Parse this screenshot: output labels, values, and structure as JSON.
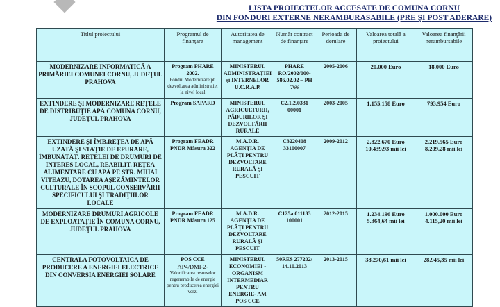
{
  "title": {
    "line1": "LISTA PROIECTELOR ACCESATE DE COMUNA CORNU",
    "line2": "DIN FONDURI EXTERNE NERAMBURASABILE (PRE ŞI POST ADERARE)"
  },
  "headers": [
    "Titlul proiectului",
    "Programul de finanţare",
    "Autoritatea de management",
    "Număr contract de finanţare",
    "Perioada de derulare",
    "Valoarea totală a proiectului",
    "Valoarea finanţării nerambursabile"
  ],
  "rows": [
    {
      "title": "MODERNIZARE INFORMATICĂ A PRIMĂRIEI COMUNEI CORNU, JUDEŢUL PRAHOVA",
      "program": "Program PHARE 2002.",
      "program_note": "Fondul Modernizare pt. dezvoltarea administratiei la nivel local",
      "authority": "MINISTERUL ADMINISTRAŢIEI şi INTERNELOR U.C.R.A.P.",
      "contract": "PHARE RO/2002/000-586.02.02 – PH 766",
      "period": "2005-2006",
      "total": "20.000 Euro",
      "total2": "",
      "grant": "18.000 Euro",
      "grant2": ""
    },
    {
      "title": "EXTINDERE ŞI MODERNIZARE REŢELE DE DISTRIBUŢIE APĂ COMUNA CORNU, JUDEŢUL PRAHOVA",
      "program": "Program SAPARD",
      "program_note": "",
      "authority": "MINISTERUL AGRICULTURII, PĂDURILOR ŞI DEZVOLTĂRII RURALE",
      "contract": "C2.1.2.0331 00001",
      "period": "2003-2005",
      "total": "1.155.158 Euro",
      "total2": "",
      "grant": "793.954 Euro",
      "grant2": ""
    },
    {
      "title": "EXTINDERE ŞI ÎMB.REŢEA DE APĂ UZATĂ ŞI STAŢIE DE EPURARE, ÎMBUNĂTĂŢ. REŢELEI DE DRUMURI DE INTERES LOCAL, REABILIT. REŢEA ALIMENTARE CU APĂ PE STR. MIHAI VITEAZU, DOTAREA AŞEZĂMINTELOR CULTURALE ÎN SCOPUL CONSERVĂRII SPECIFICULUI ŞI TRADIŢIILOR LOCALE",
      "program": "Program FEADR PNDR Măsura 322",
      "program_note": "",
      "authority": "M.A.D.R. AGENŢIA DE PLĂŢI PENTRU DEZVOLTARE RURALĂ ŞI PESCUIT",
      "contract": "C3220408 33100007",
      "period": "2009-2012",
      "total": "2.822.670 Euro",
      "total2": "10.439,93 mii lei",
      "grant": "2.219.565 Euro",
      "grant2": "8.209.28 mii lei"
    },
    {
      "title": "MODERNIZARE DRUMURI AGRICOLE DE EXPLOATAŢIE ÎN COMUNA CORNU, JUDEŢUL PRAHOVA",
      "program": "Program FEADR PNDR Măsura 125",
      "program_note": "",
      "authority": "M.A.D.R. AGENŢIA DE PLĂŢI PENTRU DEZVOLTARE RURALĂ ŞI PESCUIT",
      "contract": "C125a 011133 100001",
      "period": "2012-2015",
      "total": "1.234.196 Euro",
      "total2": "5.364,64 mii lei",
      "grant": "1.000.000 Euro",
      "grant2": "4.115,20 mii lei"
    },
    {
      "title": "CENTRALA FOTOVOLTAICA DE PRODUCERE A ENERGIEI ELECTRICE DIN CONVERSIA ENERGIEI SOLARE",
      "program": "POS CCE",
      "program_sub": "AP4/DMI-2-",
      "program_note": "Valorificarea resurselor regenerabile de energie pentru producerea energiei verzi",
      "authority": "MINISTERUL ECONOMIEI -ORGANISM INTERMEDIAR PENTRU ENERGIE- AM POS CCE",
      "contract": "50RES 277202/ 14.10.2013",
      "period": "2013-2015",
      "total": "38.270,61 mii lei",
      "total2": "",
      "grant": "28.945,35 mii lei",
      "grant2": ""
    }
  ]
}
